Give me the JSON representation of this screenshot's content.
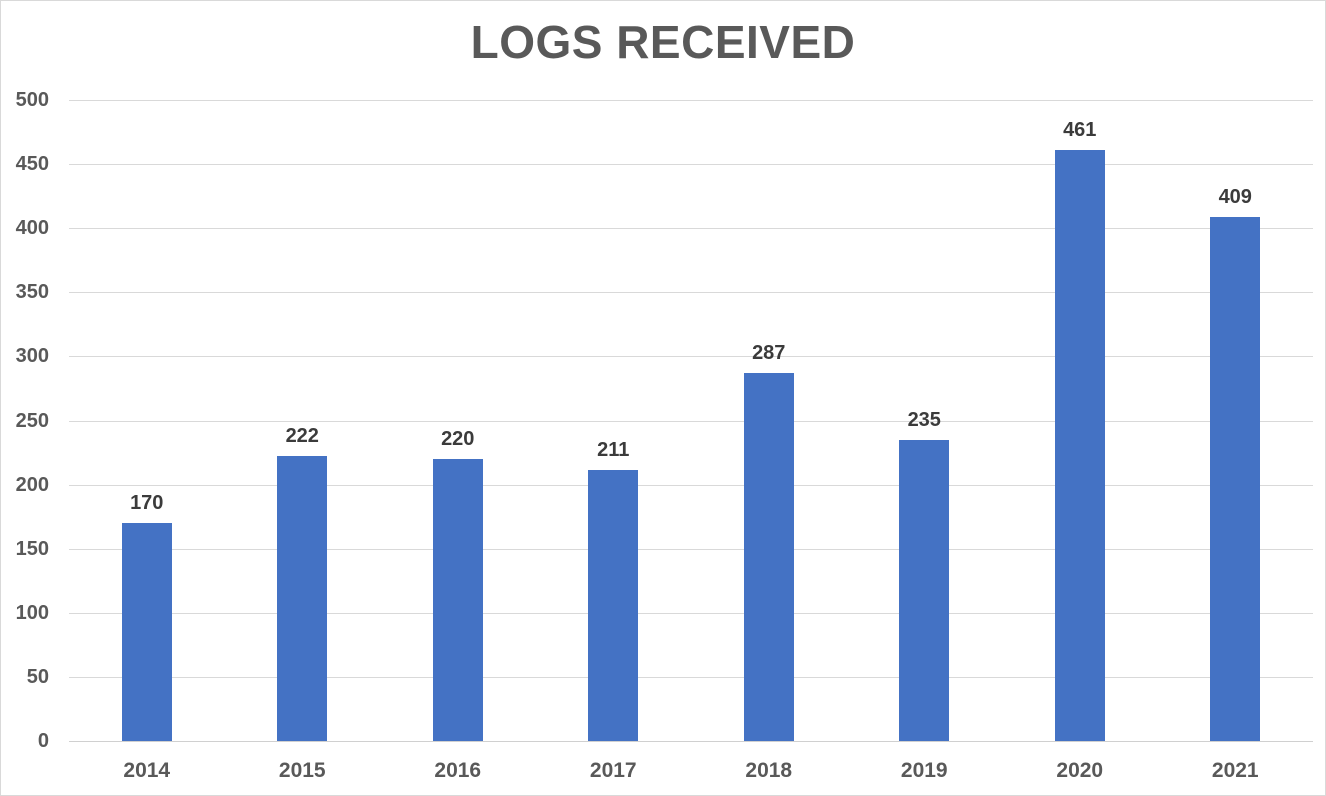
{
  "chart_data": {
    "type": "bar",
    "title": "LOGS RECEIVED",
    "categories": [
      "2014",
      "2015",
      "2016",
      "2017",
      "2018",
      "2019",
      "2020",
      "2021"
    ],
    "values": [
      170,
      222,
      220,
      211,
      287,
      235,
      461,
      409
    ],
    "data_labels": [
      "170",
      "222",
      "220",
      "211",
      "287",
      "235",
      "461",
      "409"
    ],
    "xlabel": "",
    "ylabel": "",
    "ylim": [
      0,
      500
    ],
    "ytick_step": 50,
    "yticks": [
      "0",
      "50",
      "100",
      "150",
      "200",
      "250",
      "300",
      "350",
      "400",
      "450",
      "500"
    ],
    "grid": "horizontal",
    "legend_position": "none",
    "colors": {
      "bar": "#4472C4",
      "title": "#595959",
      "axis_tick_labels": "#595959",
      "data_labels": "#3b3b3b",
      "gridlines": "#d9d9d9",
      "axis_line": "#d0d0d0",
      "background": "#ffffff",
      "frame_border": "#d9d9d9"
    }
  }
}
